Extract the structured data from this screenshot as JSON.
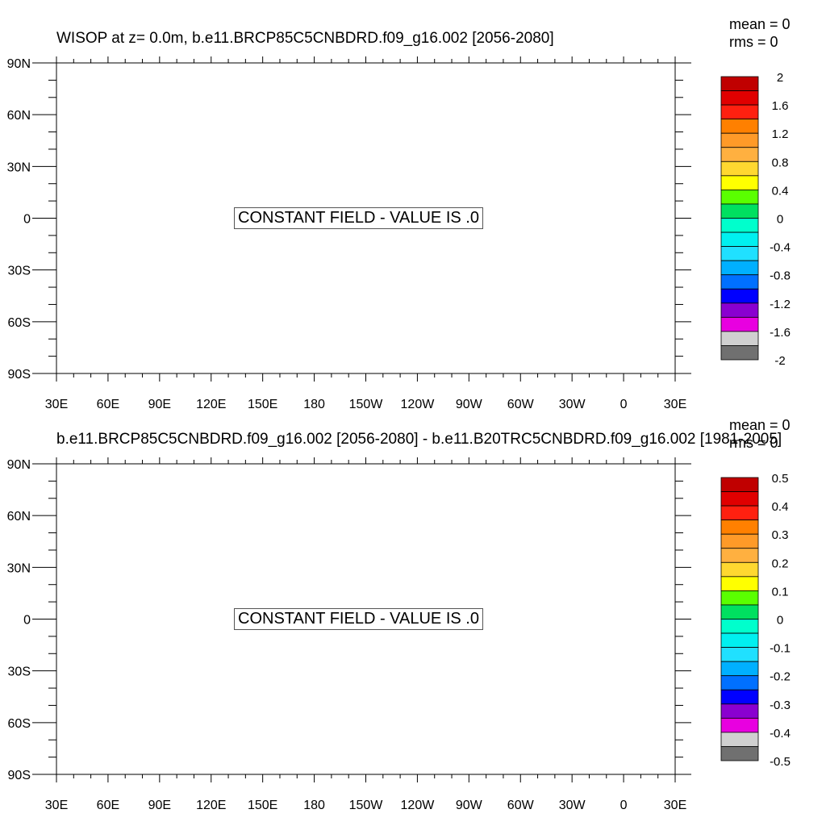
{
  "panels": [
    {
      "title": "WISOP at z=   0.0m, b.e11.BRCP85C5CNBDRD.f09_g16.002 [2056-2080]",
      "stats": {
        "mean": "mean = 0",
        "rms": "rms = 0"
      },
      "message": "CONSTANT FIELD - VALUE IS .0",
      "lat_labels": [
        "90N",
        "60N",
        "30N",
        "0",
        "30S",
        "60S",
        "90S"
      ],
      "lon_labels": [
        "30E",
        "60E",
        "90E",
        "120E",
        "150E",
        "180",
        "150W",
        "120W",
        "90W",
        "60W",
        "30W",
        "0",
        "30E"
      ],
      "colorbar_labels": [
        "2",
        "1.6",
        "1.2",
        "0.8",
        "0.4",
        "0",
        "-0.4",
        "-0.8",
        "-1.2",
        "-1.6",
        "-2"
      ]
    },
    {
      "title": "b.e11.BRCP85C5CNBDRD.f09_g16.002 [2056-2080] - b.e11.B20TRC5CNBDRD.f09_g16.002 [1981-2005]",
      "stats": {
        "mean": "mean = 0",
        "rms": "rms = 0"
      },
      "message": "CONSTANT FIELD - VALUE IS .0",
      "lat_labels": [
        "90N",
        "60N",
        "30N",
        "0",
        "30S",
        "60S",
        "90S"
      ],
      "lon_labels": [
        "30E",
        "60E",
        "90E",
        "120E",
        "150E",
        "180",
        "150W",
        "120W",
        "90W",
        "60W",
        "30W",
        "0",
        "30E"
      ],
      "colorbar_labels": [
        "0.5",
        "0.4",
        "0.3",
        "0.2",
        "0.1",
        "0",
        "-0.1",
        "-0.2",
        "-0.3",
        "-0.4",
        "-0.5"
      ]
    }
  ],
  "colorbar_colors": [
    "#c00000",
    "#e00000",
    "#ff2010",
    "#ff8000",
    "#ff9a28",
    "#ffb040",
    "#ffd830",
    "#ffff00",
    "#5aff00",
    "#00e060",
    "#00ffcc",
    "#00f0f0",
    "#20e0ff",
    "#00b0ff",
    "#0070ff",
    "#0000ff",
    "#8a00d0",
    "#e800e0",
    "#d0d0d0",
    "#707070"
  ],
  "chart_data": [
    {
      "type": "heatmap",
      "title": "WISOP at z=   0.0m, b.e11.BRCP85C5CNBDRD.f09_g16.002 [2056-2080]",
      "values": "constant field, value 0",
      "mean": 0,
      "rms": 0,
      "xlim": [
        "30E",
        "30E"
      ],
      "ylim": [
        "90S",
        "90N"
      ],
      "colorbar_range": [
        -2,
        2
      ],
      "colorbar_step": 0.2
    },
    {
      "type": "heatmap",
      "title": "b.e11.BRCP85C5CNBDRD.f09_g16.002 [2056-2080] - b.e11.B20TRC5CNBDRD.f09_g16.002 [1981-2005]",
      "values": "constant field, value 0",
      "mean": 0,
      "rms": 0,
      "xlim": [
        "30E",
        "30E"
      ],
      "ylim": [
        "90S",
        "90N"
      ],
      "colorbar_range": [
        -0.5,
        0.5
      ],
      "colorbar_step": 0.05
    }
  ]
}
